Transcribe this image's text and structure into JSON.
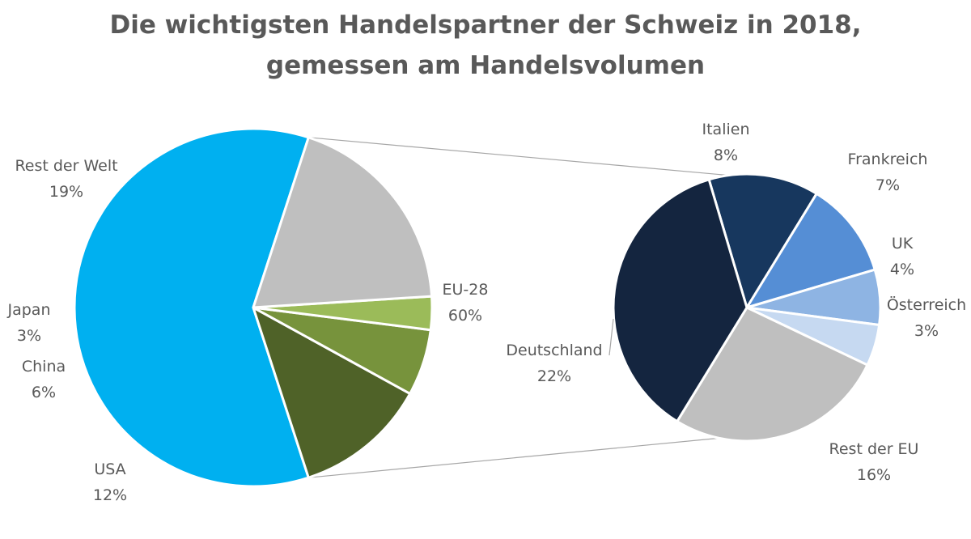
{
  "chart_data": {
    "type": "pie",
    "title": [
      "Die wichtigsten Handelspartner der Schweiz in 2018,",
      "gemessen am Handelsvolumen"
    ],
    "main_pie": {
      "slices": [
        {
          "name": "EU-28",
          "percent_label": "60%",
          "value": 60,
          "color": "#00B0F0"
        },
        {
          "name": "USA",
          "percent_label": "12%",
          "value": 12,
          "color": "#4F6228"
        },
        {
          "name": "China",
          "percent_label": "6%",
          "value": 6,
          "color": "#77933C"
        },
        {
          "name": "Japan",
          "percent_label": "3%",
          "value": 3,
          "color": "#9BBB59"
        },
        {
          "name": "Rest der Welt",
          "percent_label": "19%",
          "value": 19,
          "color": "#BFBFBF"
        }
      ]
    },
    "detail_pie": {
      "of": "EU-28",
      "slices": [
        {
          "name": "Italien",
          "percent_label": "8%",
          "value": 8,
          "color": "#17375E"
        },
        {
          "name": "Frankreich",
          "percent_label": "7%",
          "value": 7,
          "color": "#558ED5"
        },
        {
          "name": "UK",
          "percent_label": "4%",
          "value": 4,
          "color": "#8EB4E3"
        },
        {
          "name": "Österreich",
          "percent_label": "3%",
          "value": 3,
          "color": "#C6D9F1"
        },
        {
          "name": "Rest der EU",
          "percent_label": "16%",
          "value": 16,
          "color": "#BFBFBF"
        },
        {
          "name": "Deutschland",
          "percent_label": "22%",
          "value": 22,
          "color": "#14253F"
        }
      ]
    }
  }
}
